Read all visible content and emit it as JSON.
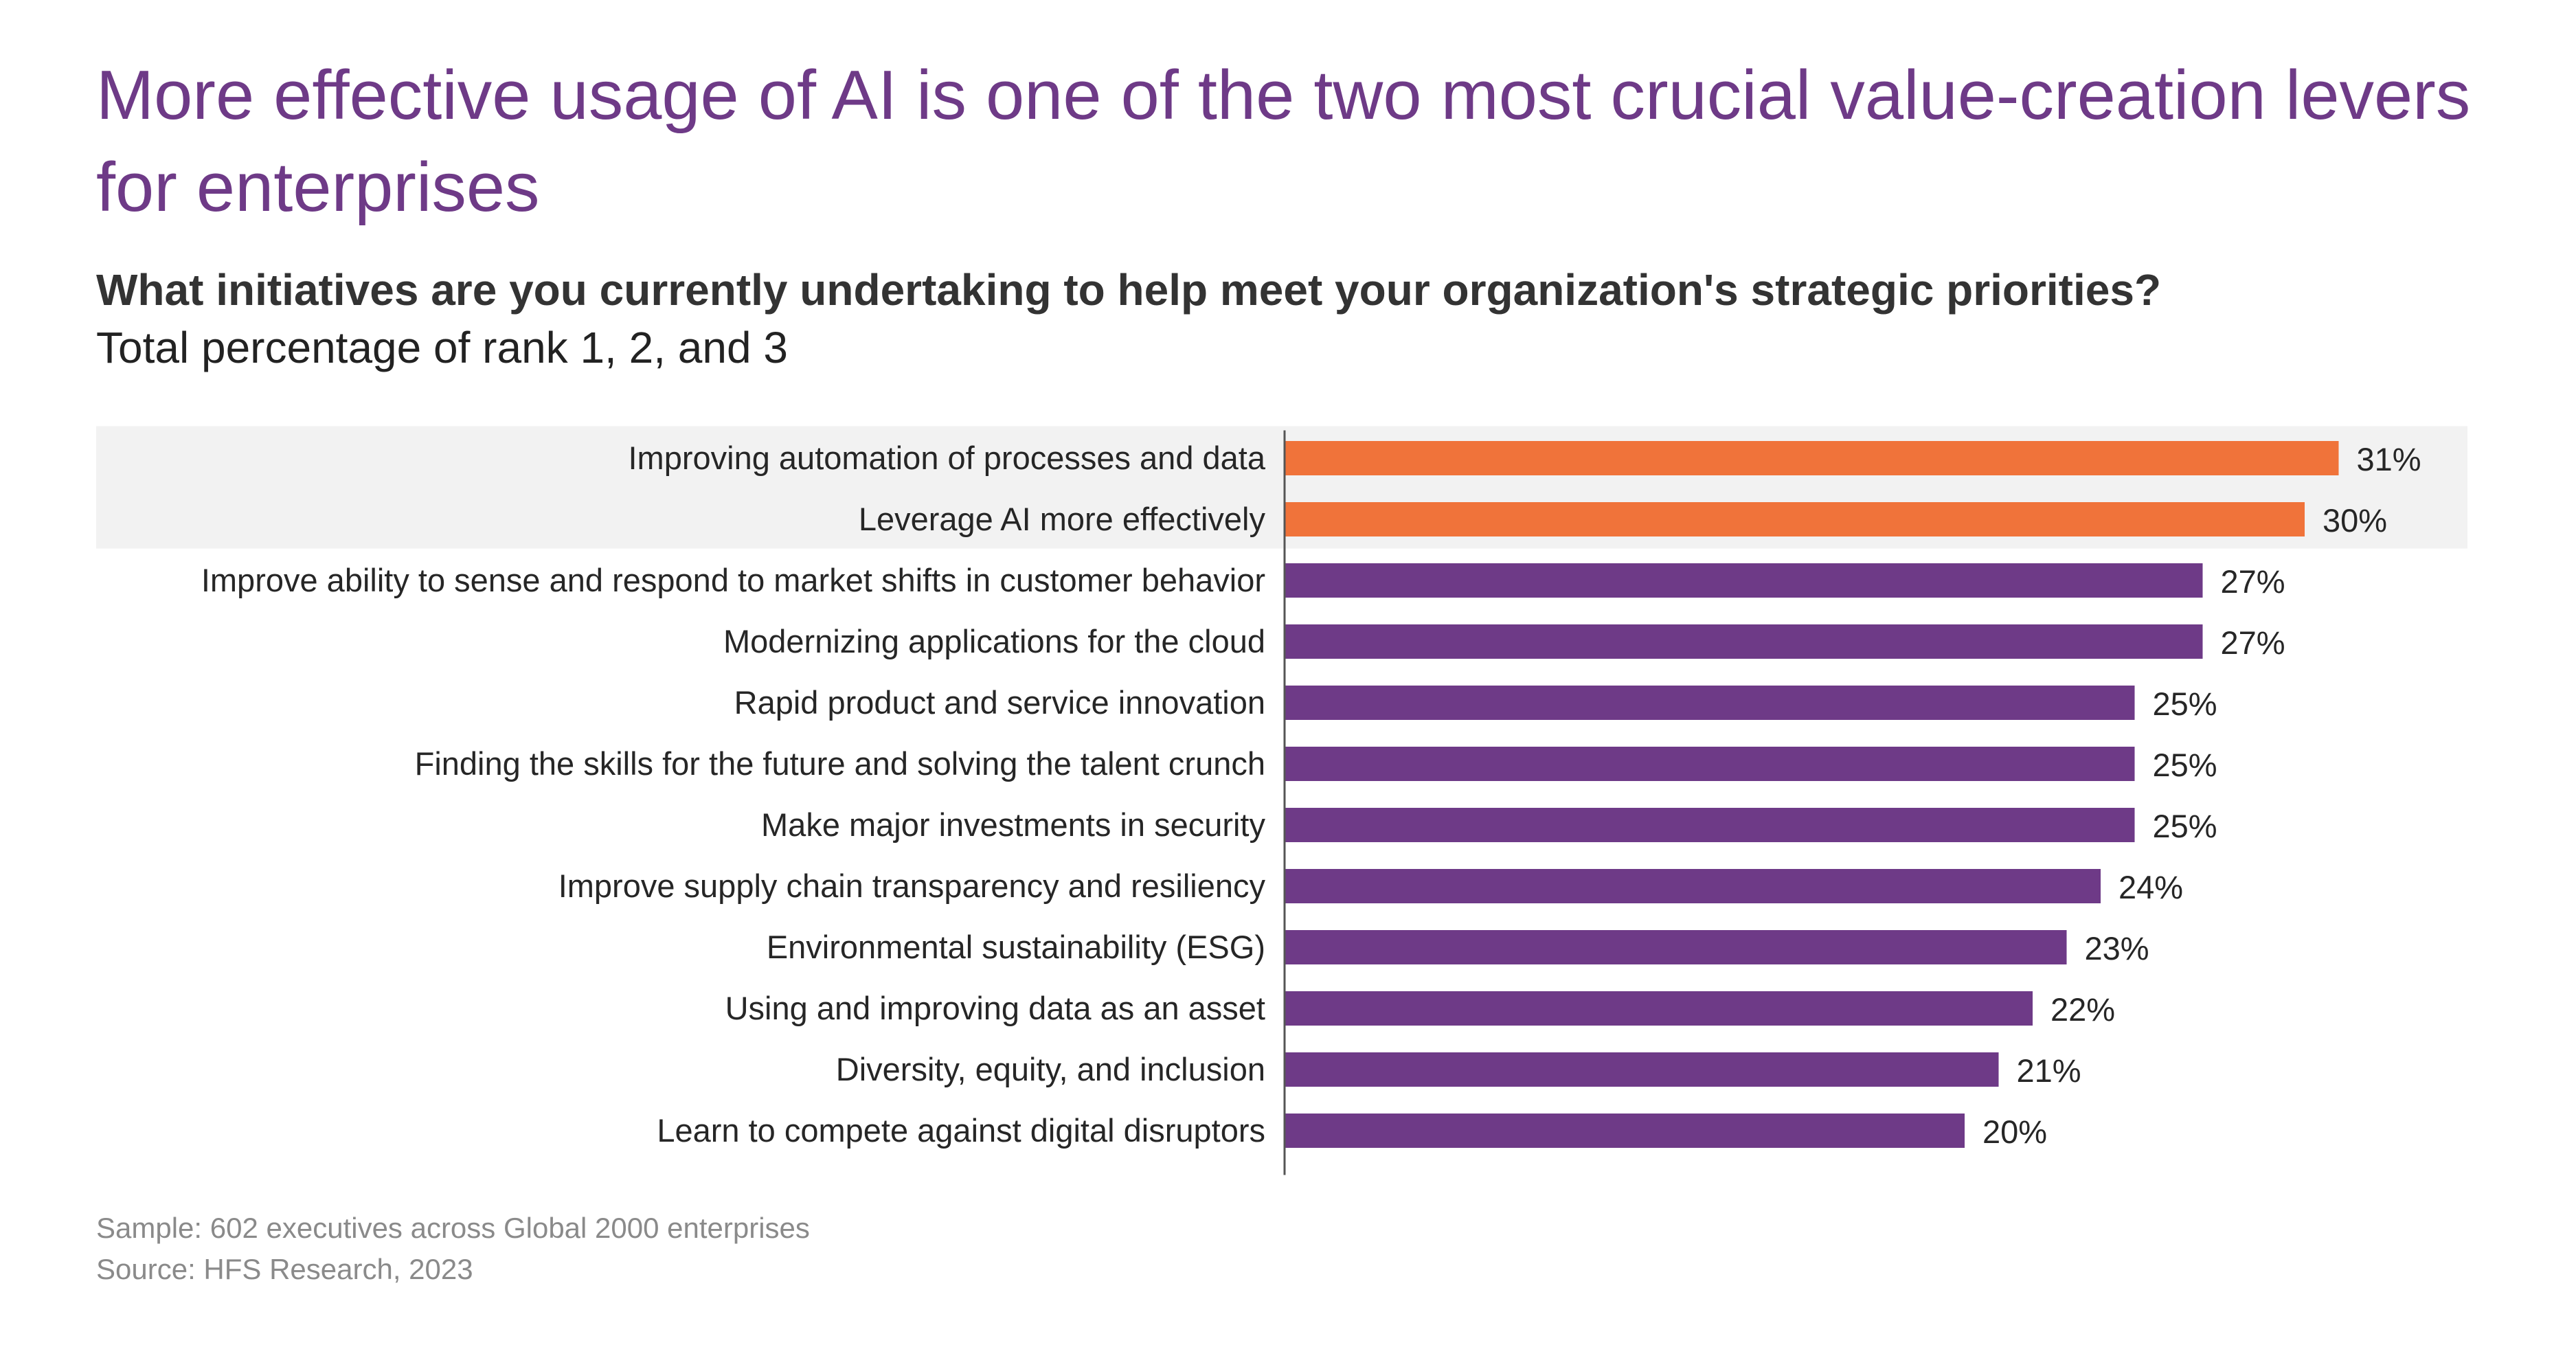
{
  "title": "More effective usage of AI is one of the two most crucial value-creation levers for enterprises",
  "question": "What initiatives are you currently undertaking to help meet your organization's strategic priorities?",
  "subtitle": "Total percentage of rank 1, 2, and 3",
  "footnotes": {
    "sample": "Sample: 602 executives across Global 2000 enterprises",
    "source": "Source: HFS Research, 2023"
  },
  "colors": {
    "title": "#6e3a87",
    "highlight_bar": "#f0733a",
    "default_bar": "#6e3a87",
    "highlight_band": "#f2f2f2"
  },
  "chart_data": {
    "type": "bar",
    "orientation": "horizontal",
    "categories": [
      "Improving automation of processes and data",
      "Leverage AI more effectively",
      "Improve ability to sense and respond to market shifts in customer behavior",
      "Modernizing applications for the cloud",
      "Rapid product and service innovation",
      "Finding the skills for the future and solving the talent crunch",
      "Make major investments in security",
      "Improve supply chain transparency and resiliency",
      "Environmental sustainability (ESG)",
      "Using and improving data as an asset",
      "Diversity, equity, and inclusion",
      "Learn to compete against digital disruptors"
    ],
    "values": [
      31,
      30,
      27,
      27,
      25,
      25,
      25,
      24,
      23,
      22,
      21,
      20
    ],
    "value_labels": [
      "31%",
      "30%",
      "27%",
      "27%",
      "25%",
      "25%",
      "25%",
      "24%",
      "23%",
      "22%",
      "21%",
      "20%"
    ],
    "highlighted": [
      0,
      1
    ],
    "xlim": [
      0,
      36
    ],
    "grid": false,
    "legend": "none"
  }
}
